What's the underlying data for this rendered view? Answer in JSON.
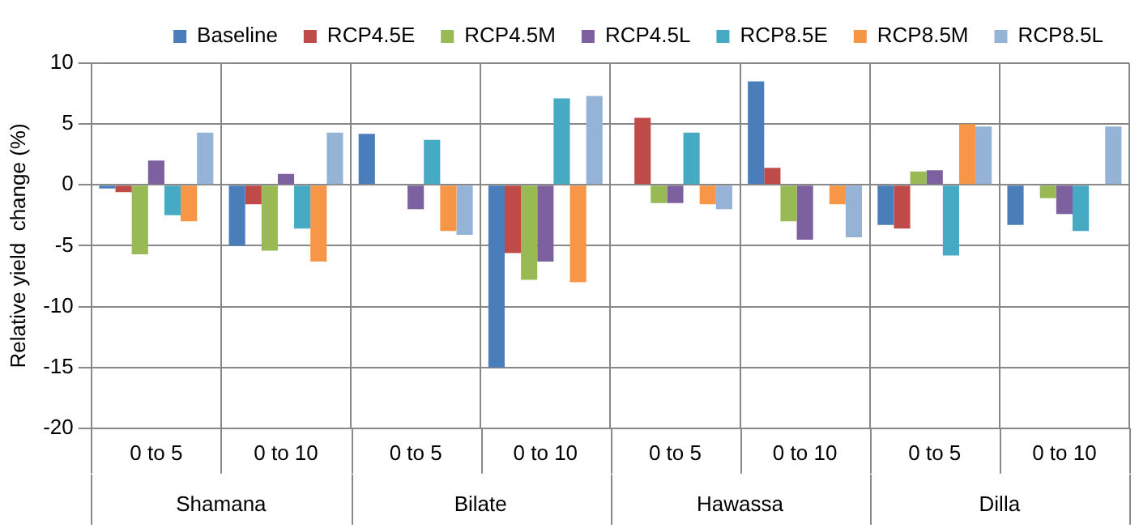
{
  "chart_data": {
    "type": "bar",
    "ylabel": "Relative yield  change (%)",
    "categories": [
      "0 to 5",
      "0 to 10",
      "0 to 5",
      "0 to 10",
      "0 to 5",
      "0 to 10",
      "0 to 5",
      "0 to 10"
    ],
    "annotations": [
      "Shamana",
      "Bilate",
      "Hawassa",
      "Dilla"
    ],
    "series": [
      {
        "name": "Baseline",
        "color": "#4a7ebb",
        "values": [
          -0.3,
          -5.0,
          4.2,
          -15.0,
          null,
          8.5,
          -3.3,
          -3.3
        ]
      },
      {
        "name": "RCP4.5E",
        "color": "#be4b48",
        "values": [
          -0.6,
          -1.6,
          null,
          -5.6,
          5.5,
          1.4,
          -3.6,
          null
        ]
      },
      {
        "name": "RCP4.5M",
        "color": "#98b954",
        "values": [
          -5.7,
          -5.4,
          null,
          -7.8,
          -1.5,
          -3.0,
          1.1,
          -1.1
        ]
      },
      {
        "name": "RCP4.5L",
        "color": "#7d60a0",
        "values": [
          2.0,
          0.9,
          -2.0,
          -6.3,
          -1.5,
          -4.5,
          1.2,
          -2.4
        ]
      },
      {
        "name": "RCP8.5E",
        "color": "#46aac5",
        "values": [
          -2.5,
          -3.6,
          3.7,
          7.1,
          4.3,
          null,
          -5.8,
          -3.8
        ]
      },
      {
        "name": "RCP8.5M",
        "color": "#f69646",
        "values": [
          -3.0,
          -6.3,
          -3.8,
          -8.0,
          -1.6,
          -1.6,
          5.0,
          null
        ]
      },
      {
        "name": "RCP8.5L",
        "color": "#95b3d7",
        "values": [
          4.3,
          4.3,
          -4.1,
          7.3,
          -2.0,
          -4.3,
          4.8,
          4.8
        ]
      }
    ],
    "ylim": [
      -20,
      10
    ],
    "yticks": [
      -20,
      -15,
      -10,
      -5,
      0,
      5,
      10
    ],
    "grid": true,
    "legend": "top right"
  }
}
